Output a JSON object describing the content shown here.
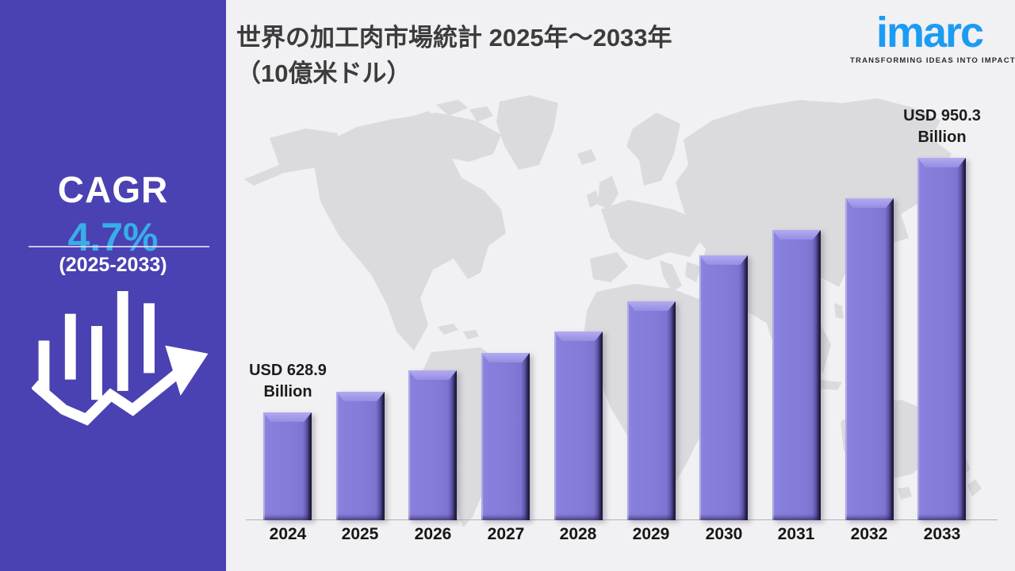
{
  "sidebar": {
    "bg_color": "#4A41B2",
    "cagr_label": "CAGR",
    "cagr_value": "4.7%",
    "cagr_value_color": "#38ADE8",
    "cagr_period": "(2025-2033)",
    "icon": "bar-chart-growth-arrow-icon"
  },
  "header": {
    "title_line1": "世界の加工肉市場統計 2025年～2033年",
    "title_line2": "（10億米ドル）"
  },
  "logo": {
    "brand": "imarc",
    "tagline": "TRANSFORMING IDEAS INTO IMPACT",
    "brand_color": "#1A9CF3"
  },
  "chart_data": {
    "type": "bar",
    "title": "世界の加工肉市場統計 2025年～2033年（10億米ドル）",
    "unit": "USD Billion",
    "categories": [
      "2024",
      "2025",
      "2026",
      "2027",
      "2028",
      "2029",
      "2030",
      "2031",
      "2032",
      "2033"
    ],
    "values": [
      628.9,
      655,
      682,
      704,
      731,
      769,
      827,
      859,
      899,
      950.3
    ],
    "first_bar_label_line1": "USD 628.9",
    "first_bar_label_line2": "Billion",
    "last_bar_label_line1": "USD 950.3",
    "last_bar_label_line2": "Billion",
    "bar_color": "#837AD8",
    "bar_top_bevel_color": "#A79EEC",
    "bar_edge_color": "#17132C",
    "axis_baseline_value": 492.9,
    "ylim": [
      492.9,
      965
    ],
    "xlabel": "",
    "ylabel": "",
    "grid": false,
    "legend": false,
    "background": "world-map-silhouette"
  }
}
